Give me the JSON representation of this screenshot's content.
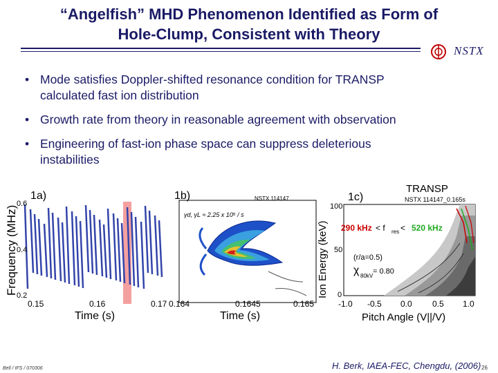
{
  "slide": {
    "title_line1": "“Angelfish” MHD Phenomenon Identified as Form of",
    "title_line2": "Hole-Clump, Consistent with Theory",
    "logo_text": "NSTX",
    "bullets": [
      {
        "line1": "Mode satisfies Doppler-shifted resonance condition for TRANSP",
        "line2": "calculated fast ion distribution"
      },
      {
        "line1": "Growth rate from theory in reasonable agreement with observation",
        "line2": ""
      },
      {
        "line1": "Engineering of fast-ion phase space can suppress deleterious",
        "line2": "instabilities"
      }
    ],
    "footer_left": "Bell / IFS / 070306",
    "footer_mid": "H. Berk, IAEA-FEC, Chengdu, (2006)",
    "footer_right": "26"
  },
  "panel_1a": {
    "label": "1a)",
    "ylabel": "Frequency (MHz)",
    "xlabel": "Time (s)",
    "yticks": [
      "0.6",
      "0.4",
      "0.2"
    ],
    "xticks": [
      "0.15",
      "0.16",
      "0.17"
    ],
    "highlight_color": "#f4a0a0"
  },
  "panel_1b": {
    "label": "1b)",
    "header": "NSTX 114147",
    "formula": "γd, γL ≈ 2.25 x 10⁵ / s",
    "xlabel": "Time (s)",
    "xticks": [
      "0.164",
      "0.1645",
      "0.165"
    ]
  },
  "panel_1c": {
    "label": "1c)",
    "header1": "TRANSP",
    "header2": "NSTX 114147_0.165s",
    "ylabel": "Ion Energy (keV)",
    "xlabel": "Pitch Angle (V||/V)",
    "yticks": [
      "100",
      "50",
      "0"
    ],
    "xticks": [
      "-1.0",
      "-0.5",
      "0.0",
      "0.5",
      "1.0"
    ],
    "resonance_left": "290 kHz",
    "resonance_mid": " < f",
    "resonance_sub": "res",
    "resonance_lt": " < ",
    "resonance_right": "520 kHz",
    "ra_label": "(r/a=0.5)",
    "chi_label": "χ",
    "chi_sub": "80kV",
    "chi_value": " = 0.80",
    "color_low": "#cc0000",
    "color_high": "#22aa22"
  }
}
